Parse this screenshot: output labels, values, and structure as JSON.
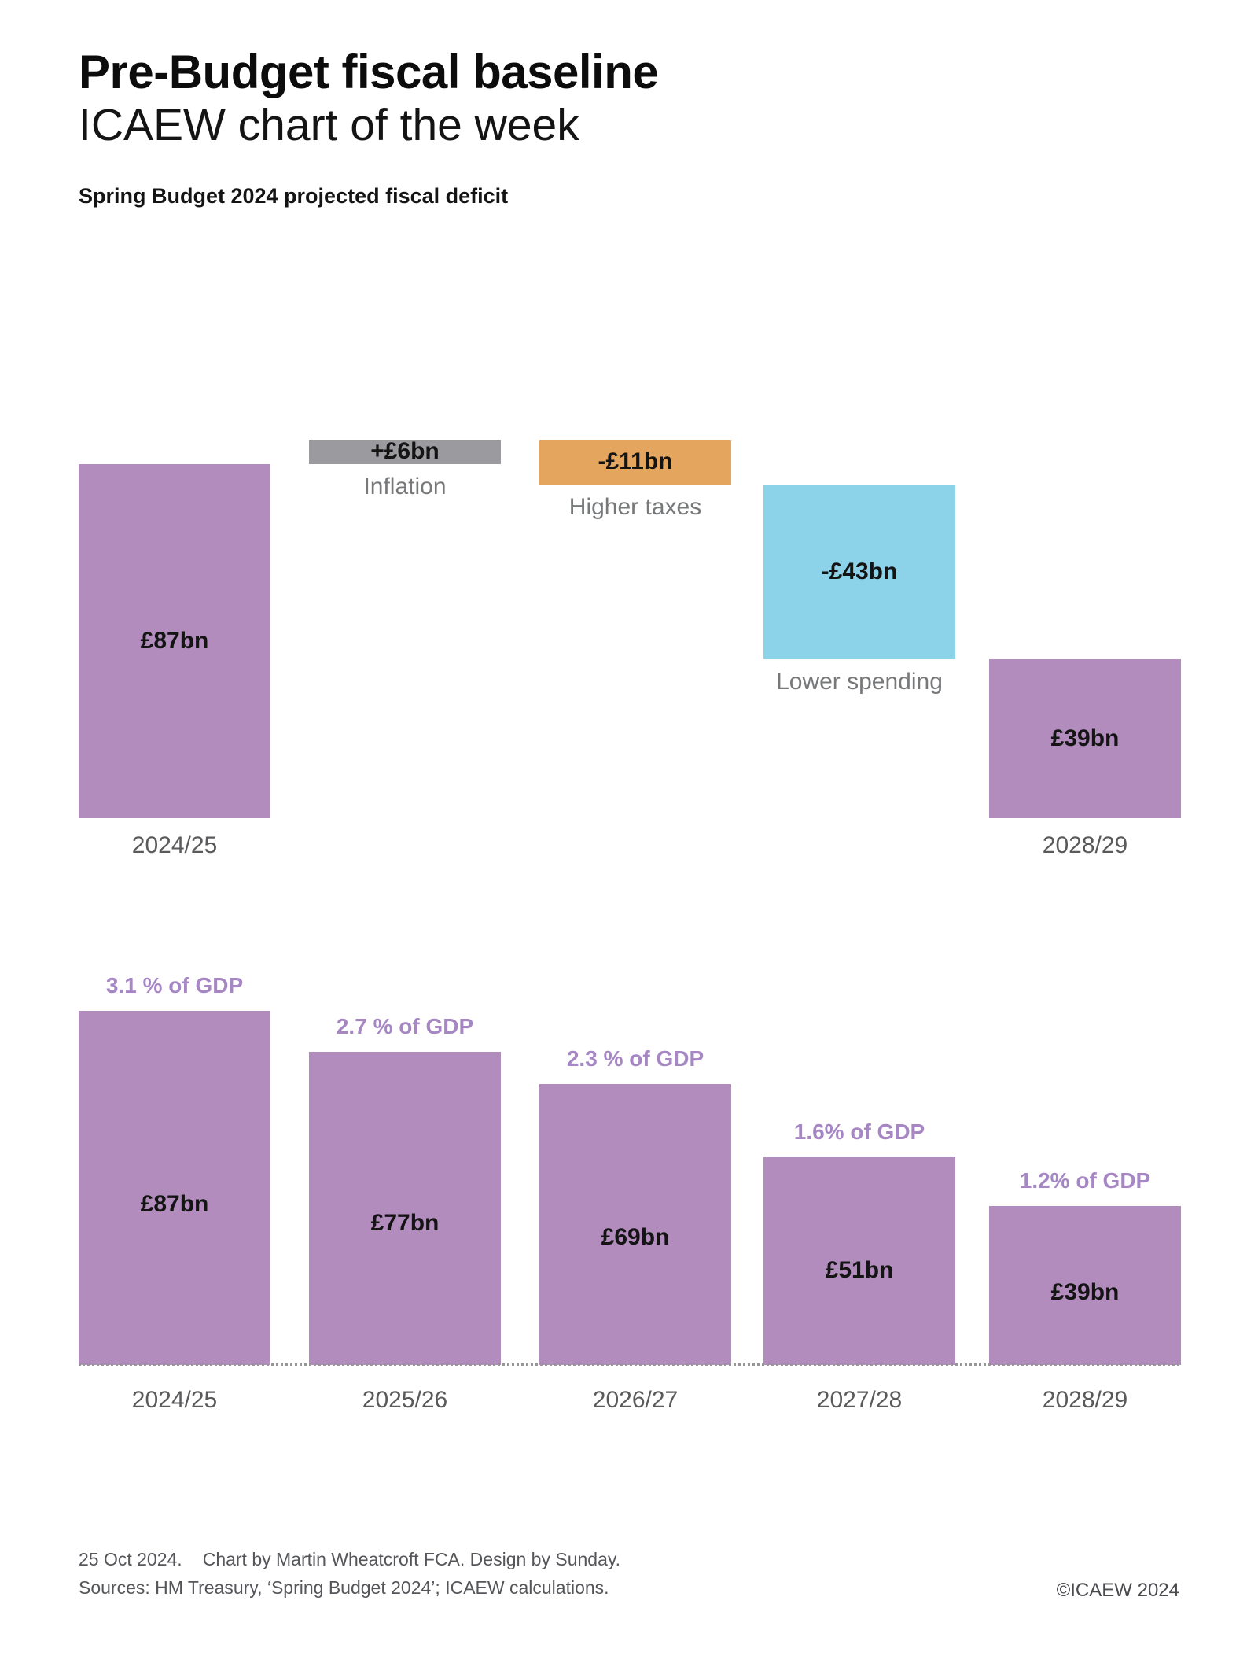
{
  "header": {
    "title": "Pre-Budget fiscal baseline",
    "subtitle": "ICAEW chart of the week",
    "chart_heading": "Spring Budget 2024 projected fiscal deficit"
  },
  "colors": {
    "purple_bar": "#B18CBC",
    "gray_bar": "#9B9B9F",
    "orange_bar": "#E4A55F",
    "blue_bar": "#8CD2E8",
    "pct_label": "#A687C4",
    "value_label": "#141414",
    "step_label": "#77787A",
    "year_label": "#5A5A5C",
    "footer_text": "#55565A"
  },
  "chart_data": [
    {
      "type": "waterfall",
      "title": "Spring Budget 2024 projected fiscal deficit",
      "unit": "£bn",
      "ylim": [
        0,
        93
      ],
      "grid": false,
      "legend": false,
      "steps": [
        {
          "label": "2024/25",
          "kind": "total",
          "value": 87,
          "display": "£87bn",
          "color_key": "purple_bar",
          "label_kind": "year"
        },
        {
          "label": "Inflation",
          "kind": "delta",
          "value": 6,
          "display": "+£6bn",
          "color_key": "gray_bar",
          "label_kind": "step"
        },
        {
          "label": "Higher taxes",
          "kind": "delta",
          "value": -11,
          "display": "-£11bn",
          "color_key": "orange_bar",
          "label_kind": "step"
        },
        {
          "label": "Lower spending",
          "kind": "delta",
          "value": -43,
          "display": "-£43bn",
          "color_key": "blue_bar",
          "label_kind": "step"
        },
        {
          "label": "2028/29",
          "kind": "total",
          "value": 39,
          "display": "£39bn",
          "color_key": "purple_bar",
          "label_kind": "year"
        }
      ]
    },
    {
      "type": "bar",
      "unit": "£bn",
      "categories": [
        "2024/25",
        "2025/26",
        "2026/27",
        "2027/28",
        "2028/29"
      ],
      "values": [
        87,
        77,
        69,
        51,
        39
      ],
      "bar_labels": [
        "£87bn",
        "£77bn",
        "£69bn",
        "£51bn",
        "£39bn"
      ],
      "pct_labels": [
        "3.1 % of GDP",
        "2.7 % of GDP",
        "2.3 % of GDP",
        "1.6% of GDP",
        "1.2% of GDP"
      ],
      "xlabel": "",
      "ylabel": "",
      "ylim": [
        0,
        87
      ],
      "grid": false,
      "legend": false
    }
  ],
  "footer": {
    "date": "25 Oct 2024.",
    "credit": "Chart by Martin Wheatcroft FCA. Design by Sunday.",
    "sources": "Sources: HM Treasury, ‘Spring Budget 2024’; ICAEW calculations.",
    "copyright": "©ICAEW 2024"
  }
}
